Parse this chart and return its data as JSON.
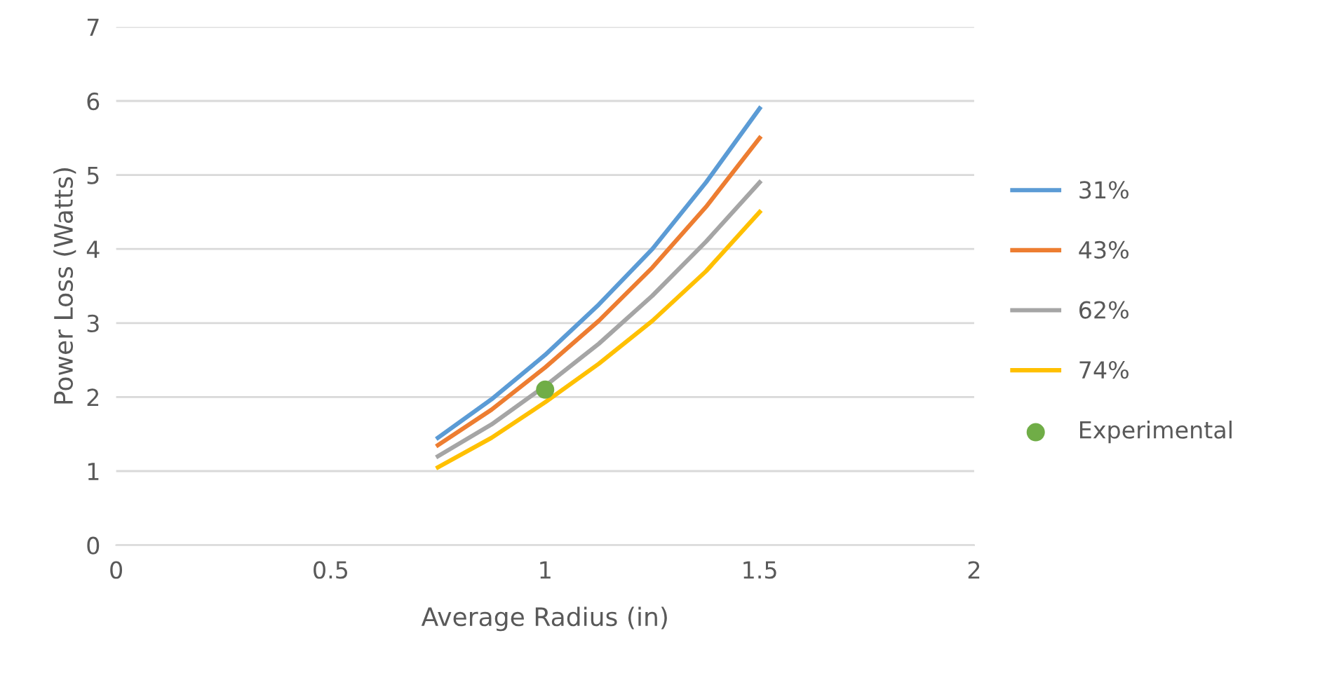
{
  "chart_data": {
    "type": "line",
    "xlabel": "Average Radius (in)",
    "ylabel": "Power Loss (Watts)",
    "x": [
      0.75,
      0.875,
      1,
      1.125,
      1.25,
      1.375,
      1.5
    ],
    "series": [
      {
        "name": "31%",
        "color": "#5b9bd5",
        "values": [
          1.45,
          1.97,
          2.57,
          3.25,
          4.0,
          4.9,
          5.9
        ]
      },
      {
        "name": "43%",
        "color": "#ed7d31",
        "values": [
          1.35,
          1.83,
          2.4,
          3.03,
          3.75,
          4.57,
          5.5
        ]
      },
      {
        "name": "62%",
        "color": "#a5a5a5",
        "values": [
          1.2,
          1.63,
          2.15,
          2.72,
          3.37,
          4.1,
          4.9
        ]
      },
      {
        "name": "74%",
        "color": "#ffc000",
        "values": [
          1.05,
          1.45,
          1.93,
          2.45,
          3.03,
          3.7,
          4.5
        ]
      },
      {
        "name": "Experimental",
        "type": "scatter",
        "color": "#70ad47",
        "x": [
          1
        ],
        "values": [
          2.1
        ],
        "marker": "circle"
      }
    ],
    "xlim": [
      0,
      2
    ],
    "xticks": [
      0,
      0.5,
      1,
      1.5,
      2
    ],
    "ylim": [
      0,
      7
    ],
    "yticks": [
      0,
      1,
      2,
      3,
      4,
      5,
      6,
      7
    ],
    "grid": "y",
    "legend": "right"
  }
}
